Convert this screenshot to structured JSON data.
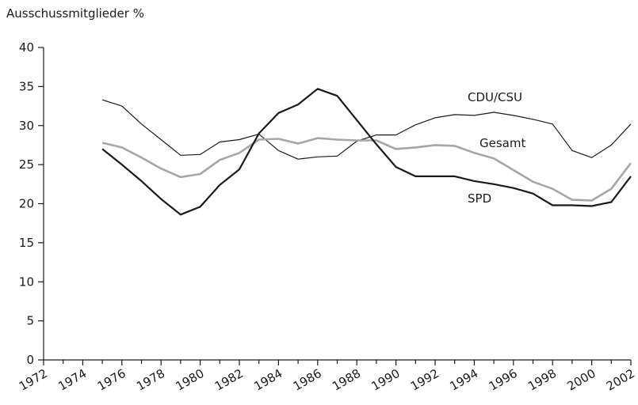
{
  "chart_data": {
    "type": "line",
    "ylabel": "Ausschussmitglieder %",
    "x": [
      1975,
      1976,
      1977,
      1978,
      1979,
      1980,
      1981,
      1982,
      1983,
      1984,
      1985,
      1986,
      1987,
      1988,
      1989,
      1990,
      1991,
      1992,
      1993,
      1994,
      1995,
      1996,
      1997,
      1998,
      1999,
      2000,
      2001,
      2002
    ],
    "series": [
      {
        "name": "CDU/CSU",
        "color": "#1a1a1a",
        "values": [
          33.3,
          32.5,
          30.2,
          28.2,
          26.2,
          26.3,
          27.9,
          28.2,
          28.9,
          26.8,
          25.7,
          26.0,
          26.1,
          28.0,
          28.8,
          28.8,
          30.1,
          31.0,
          31.4,
          31.3,
          31.7,
          31.3,
          30.8,
          30.2,
          26.8,
          25.9,
          27.5,
          30.2
        ]
      },
      {
        "name": "Gesamt",
        "color": "#a6a6a6",
        "values": [
          27.8,
          27.2,
          25.9,
          24.5,
          23.4,
          23.8,
          25.6,
          26.5,
          28.2,
          28.3,
          27.7,
          28.4,
          28.2,
          28.1,
          28.1,
          27.0,
          27.2,
          27.5,
          27.4,
          26.5,
          25.8,
          24.3,
          22.8,
          21.9,
          20.5,
          20.4,
          21.9,
          25.2
        ]
      },
      {
        "name": "SPD",
        "color": "#1a1a1a",
        "values": [
          27.0,
          25.0,
          22.9,
          20.6,
          18.6,
          19.6,
          22.4,
          24.4,
          29.0,
          31.6,
          32.7,
          34.7,
          33.8,
          30.7,
          27.6,
          24.7,
          23.5,
          23.5,
          23.5,
          22.9,
          22.5,
          22.0,
          21.3,
          19.8,
          19.8,
          19.7,
          20.2,
          23.5
        ]
      }
    ],
    "xlim": [
      1972,
      2002
    ],
    "xticks": [
      1972,
      1974,
      1976,
      1978,
      1980,
      1982,
      1984,
      1986,
      1988,
      1990,
      1992,
      1994,
      1996,
      1998,
      2000,
      2002
    ],
    "ylim": [
      0,
      40
    ],
    "yticks": [
      0,
      5,
      10,
      15,
      20,
      25,
      30,
      35,
      40
    ]
  }
}
